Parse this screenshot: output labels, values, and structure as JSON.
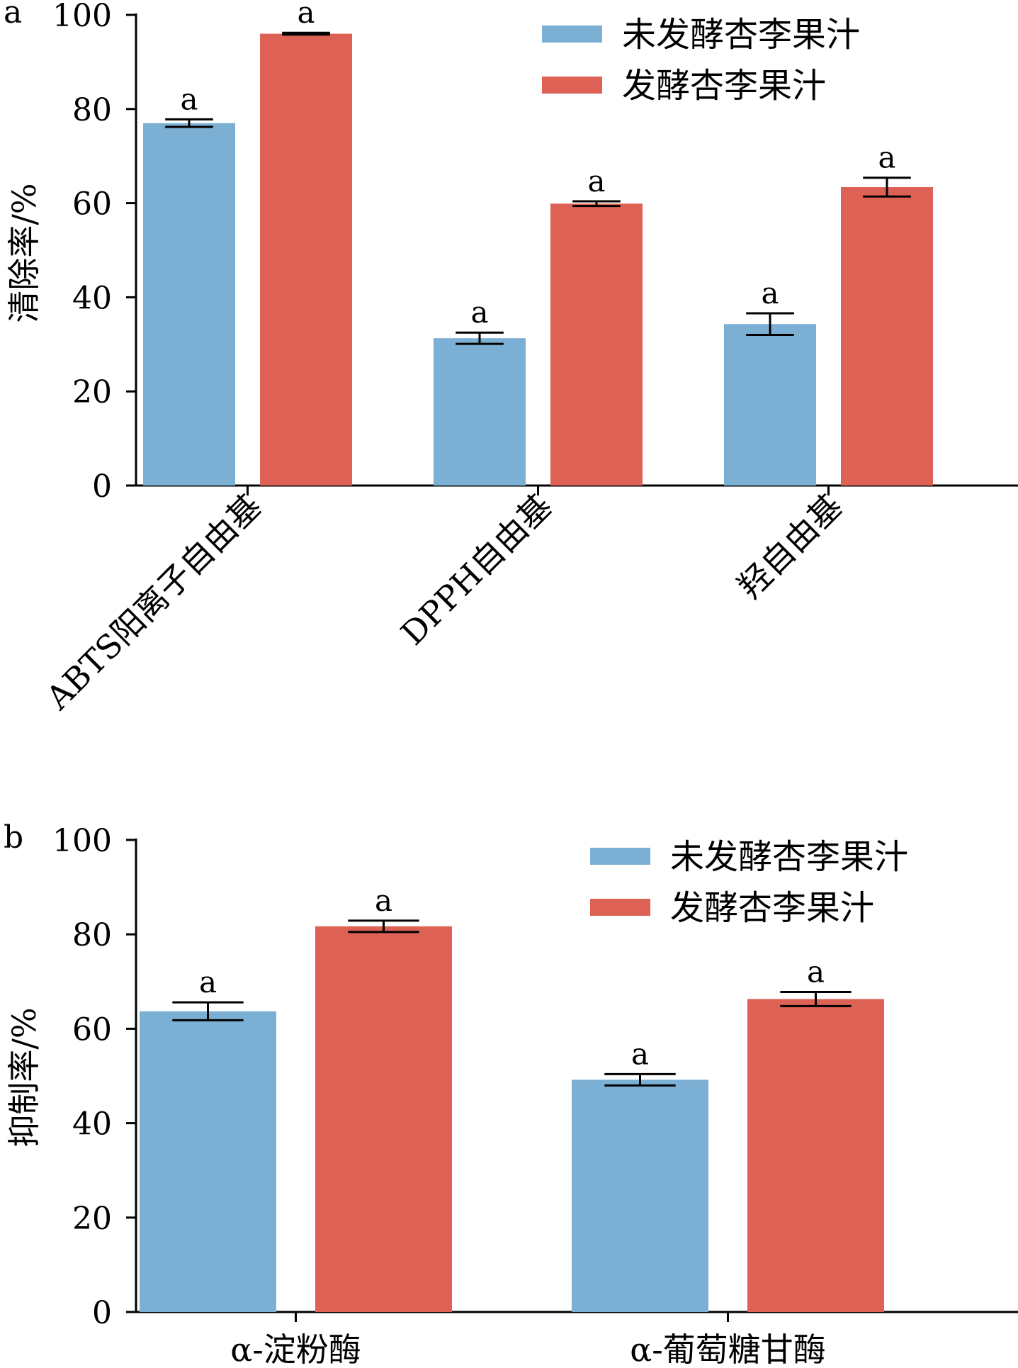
{
  "chart_data": [
    {
      "type": "bar",
      "panel_label": "a",
      "ylabel": "清除率/%",
      "ylim": [
        0,
        100
      ],
      "yticks": [
        "0",
        "20",
        "40",
        "60",
        "80",
        "100"
      ],
      "categories": [
        "ABTS阳离子自由基",
        "DPPH自由基",
        "羟自由基"
      ],
      "series": [
        {
          "name": "未发酵杏李果汁",
          "color": "#7bafd4",
          "values": [
            77,
            31.3,
            34.3
          ],
          "errors": [
            0.8,
            1.2,
            2.3
          ],
          "labels": [
            "a",
            "a",
            "a"
          ]
        },
        {
          "name": "发酵杏李果汁",
          "color": "#dd6154",
          "values": [
            96,
            59.9,
            63.4
          ],
          "errors": [
            0.2,
            0.5,
            2.0
          ],
          "labels": [
            "a",
            "a",
            "a"
          ]
        }
      ],
      "legend_position": "top-right",
      "grid": false
    },
    {
      "type": "bar",
      "panel_label": "b",
      "ylabel": "抑制率/%",
      "ylim": [
        0,
        100
      ],
      "yticks": [
        "0",
        "20",
        "40",
        "60",
        "80",
        "100"
      ],
      "categories": [
        "α-淀粉酶",
        "α-葡萄糖甘酶"
      ],
      "series": [
        {
          "name": "未发酵杏李果汁",
          "color": "#7bafd4",
          "values": [
            63.7,
            49.2
          ],
          "errors": [
            1.9,
            1.2
          ],
          "labels": [
            "a",
            "a"
          ]
        },
        {
          "name": "发酵杏李果汁",
          "color": "#dd6154",
          "values": [
            81.7,
            66.3
          ],
          "errors": [
            1.2,
            1.5
          ],
          "labels": [
            "a",
            "a"
          ]
        }
      ],
      "legend_position": "top-right",
      "grid": false
    }
  ]
}
